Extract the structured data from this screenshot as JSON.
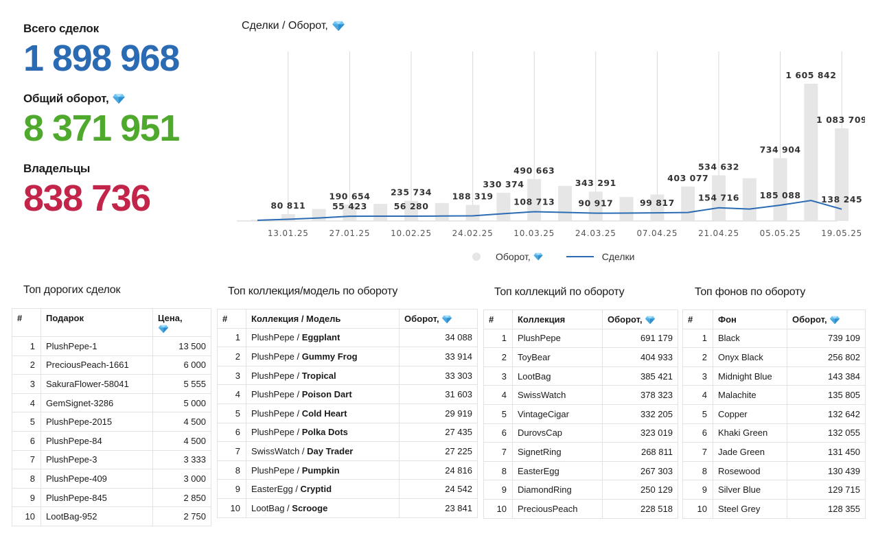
{
  "kpis": {
    "deals": {
      "label": "Всего сделок",
      "value": "1 898 968",
      "color": "#2a6bb3"
    },
    "turnover": {
      "label": "Общий оборот,",
      "value": "8 371 951",
      "color": "#4fa92d"
    },
    "owners": {
      "label": "Владельцы",
      "value": "838 736",
      "color": "#c3254a"
    }
  },
  "chart": {
    "title": "Сделки / Оборот,",
    "legend_bar": "Оборот,",
    "legend_line": "Сделки"
  },
  "chart_data": {
    "type": "bar",
    "xtick_labels": [
      "13.01.25",
      "27.01.25",
      "10.02.25",
      "24.02.25",
      "10.03.25",
      "24.03.25",
      "07.04.25",
      "21.04.25",
      "05.05.25",
      "19.05.25"
    ],
    "series": [
      {
        "name": "Оборот,",
        "type": "bar",
        "values": [
          15000,
          80811,
          140000,
          190654,
          200000,
          235734,
          210000,
          188319,
          330374,
          490663,
          410000,
          343291,
          280000,
          310000,
          403077,
          534632,
          500000,
          734904,
          1605842,
          1083709
        ]
      },
      {
        "name": "Сделки",
        "type": "line",
        "values": [
          8000,
          20000,
          35000,
          55423,
          56000,
          56280,
          58000,
          60000,
          85000,
          108713,
          100000,
          90917,
          92000,
          95000,
          99817,
          154716,
          140000,
          185088,
          240000,
          138245
        ]
      }
    ],
    "bar_labels": [
      null,
      "80 811",
      null,
      "190 654",
      null,
      "235 734",
      null,
      "188 319",
      "330 374",
      "490 663",
      null,
      "343 291",
      null,
      null,
      "403 077",
      "534 632",
      null,
      "734 904",
      "1 605 842",
      "1 083 709"
    ],
    "line_labels": [
      null,
      null,
      null,
      "55 423",
      null,
      "56 280",
      null,
      null,
      null,
      "108 713",
      null,
      "90 917",
      null,
      "99 817",
      null,
      "154 716",
      null,
      "185 088",
      null,
      "138 245"
    ],
    "colors": {
      "bar": "#e6e6e6",
      "line": "#2a6bb3",
      "grid": "#d8d8d8"
    }
  },
  "tables": {
    "expensive": {
      "title": "Топ дорогих сделок",
      "headers": [
        "#",
        "Подарок",
        "Цена,"
      ],
      "rows": [
        [
          "1",
          "PlushPepe-1",
          "13 500"
        ],
        [
          "2",
          "PreciousPeach-1661",
          "6 000"
        ],
        [
          "3",
          "SakuraFlower-58041",
          "5 555"
        ],
        [
          "4",
          "GemSignet-3286",
          "5 000"
        ],
        [
          "5",
          "PlushPepe-2015",
          "4 500"
        ],
        [
          "6",
          "PlushPepe-84",
          "4 500"
        ],
        [
          "7",
          "PlushPepe-3",
          "3 333"
        ],
        [
          "8",
          "PlushPepe-409",
          "3 000"
        ],
        [
          "9",
          "PlushPepe-845",
          "2 850"
        ],
        [
          "10",
          "LootBag-952",
          "2 750"
        ]
      ]
    },
    "models": {
      "title": "Топ коллекция/модель по обороту",
      "headers": [
        "#",
        "Коллекция / Модель",
        "Оборот,"
      ],
      "rows": [
        [
          "1",
          "PlushPepe / ",
          "Eggplant",
          "34 088"
        ],
        [
          "2",
          "PlushPepe / ",
          "Gummy Frog",
          "33 914"
        ],
        [
          "3",
          "PlushPepe / ",
          "Tropical",
          "33 303"
        ],
        [
          "4",
          "PlushPepe / ",
          "Poison Dart",
          "31 603"
        ],
        [
          "5",
          "PlushPepe / ",
          "Cold Heart",
          "29 919"
        ],
        [
          "6",
          "PlushPepe / ",
          "Polka Dots",
          "27 435"
        ],
        [
          "7",
          "SwissWatch / ",
          "Day Trader",
          "27 225"
        ],
        [
          "8",
          "PlushPepe / ",
          "Pumpkin",
          "24 816"
        ],
        [
          "9",
          "EasterEgg / ",
          "Cryptid",
          "24 542"
        ],
        [
          "10",
          "LootBag / ",
          "Scrooge",
          "23 841"
        ]
      ]
    },
    "collections": {
      "title": "Топ коллекций по обороту",
      "headers": [
        "#",
        "Коллекция",
        "Оборот,"
      ],
      "rows": [
        [
          "1",
          "PlushPepe",
          "691 179"
        ],
        [
          "2",
          "ToyBear",
          "404 933"
        ],
        [
          "3",
          "LootBag",
          "385 421"
        ],
        [
          "4",
          "SwissWatch",
          "378 323"
        ],
        [
          "5",
          "VintageCigar",
          "332 205"
        ],
        [
          "6",
          "DurovsCap",
          "323 019"
        ],
        [
          "7",
          "SignetRing",
          "268 811"
        ],
        [
          "8",
          "EasterEgg",
          "267 303"
        ],
        [
          "9",
          "DiamondRing",
          "250 129"
        ],
        [
          "10",
          "PreciousPeach",
          "228 518"
        ]
      ]
    },
    "backgrounds": {
      "title": "Топ фонов по обороту",
      "headers": [
        "#",
        "Фон",
        "Оборот,"
      ],
      "rows": [
        [
          "1",
          "Black",
          "739 109"
        ],
        [
          "2",
          "Onyx Black",
          "256 802"
        ],
        [
          "3",
          "Midnight Blue",
          "143 384"
        ],
        [
          "4",
          "Malachite",
          "135 805"
        ],
        [
          "5",
          "Copper",
          "132 642"
        ],
        [
          "6",
          "Khaki Green",
          "132 055"
        ],
        [
          "7",
          "Jade Green",
          "131 450"
        ],
        [
          "8",
          "Rosewood",
          "130 439"
        ],
        [
          "9",
          "Silver Blue",
          "129 715"
        ],
        [
          "10",
          "Steel Grey",
          "128 355"
        ]
      ]
    }
  },
  "icons": {
    "currency": "diamond-icon"
  }
}
